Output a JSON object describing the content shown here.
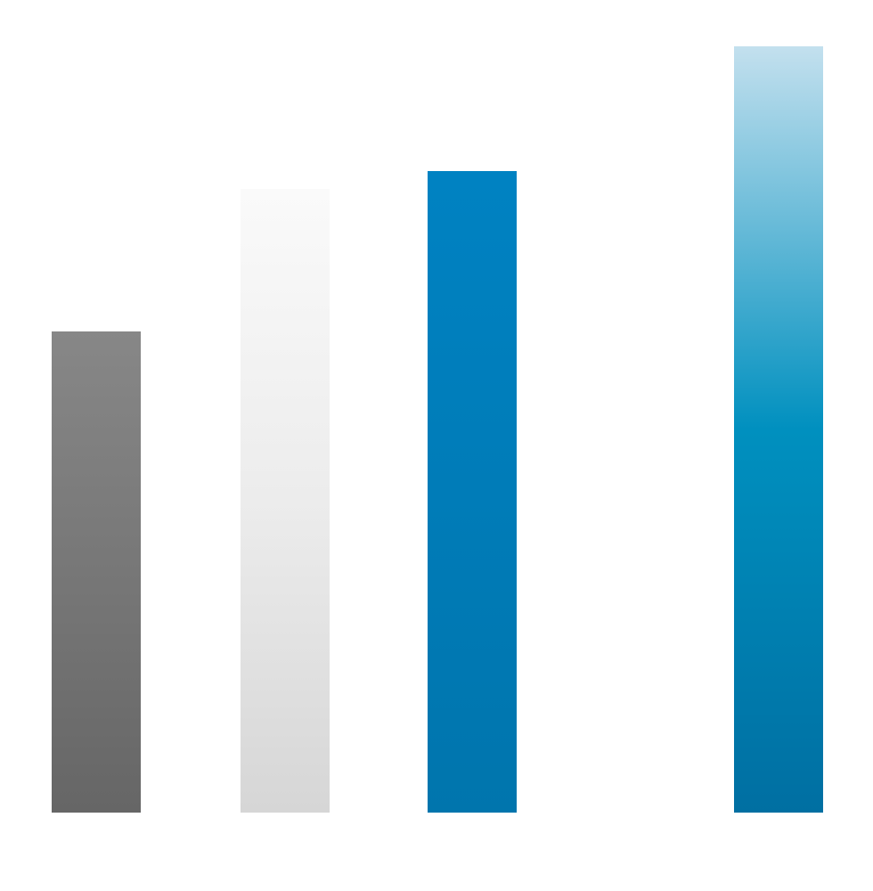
{
  "chart_data": {
    "type": "bar",
    "categories": [
      null,
      null,
      null,
      null
    ],
    "values": [
      540,
      700,
      720,
      860
    ],
    "colors": [
      [
        "#878787",
        "#777777",
        "#666666"
      ],
      [
        "#fafafa",
        "#ececec",
        "#d6d6d6"
      ],
      [
        "#0082c2",
        "#007cb8",
        "#0075ad"
      ],
      [
        "#c3e0ee",
        "#0090bf",
        "#006fa2"
      ]
    ],
    "ylim": [
      0,
      860
    ]
  }
}
